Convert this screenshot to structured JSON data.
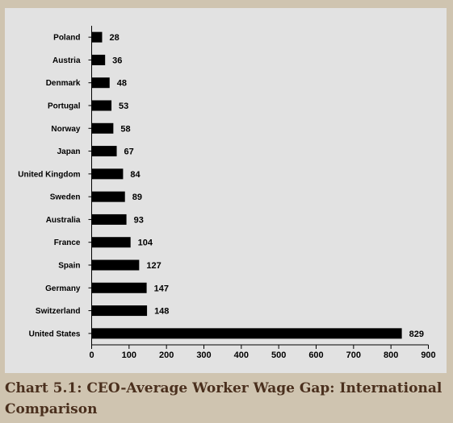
{
  "caption": "Chart 5.1: CEO-Average Worker Wage Gap: International Comparison",
  "colors": {
    "page_bg": "#cfc4b0",
    "plot_bg": "#e2e2e2",
    "bar": "#000000",
    "caption": "#4a2f1d"
  },
  "chart_data": {
    "type": "bar",
    "orientation": "horizontal",
    "title": "",
    "xlabel": "",
    "ylabel": "",
    "categories": [
      "Poland",
      "Austria",
      "Denmark",
      "Portugal",
      "Norway",
      "Japan",
      "United Kingdom",
      "Sweden",
      "Australia",
      "France",
      "Spain",
      "Germany",
      "Switzerland",
      "United States"
    ],
    "values": [
      28,
      36,
      48,
      53,
      58,
      67,
      84,
      89,
      93,
      104,
      127,
      147,
      148,
      829
    ],
    "xlim": [
      0,
      900
    ],
    "xticks": [
      0,
      100,
      200,
      300,
      400,
      500,
      600,
      700,
      800,
      900
    ],
    "grid": false,
    "legend": "none"
  }
}
